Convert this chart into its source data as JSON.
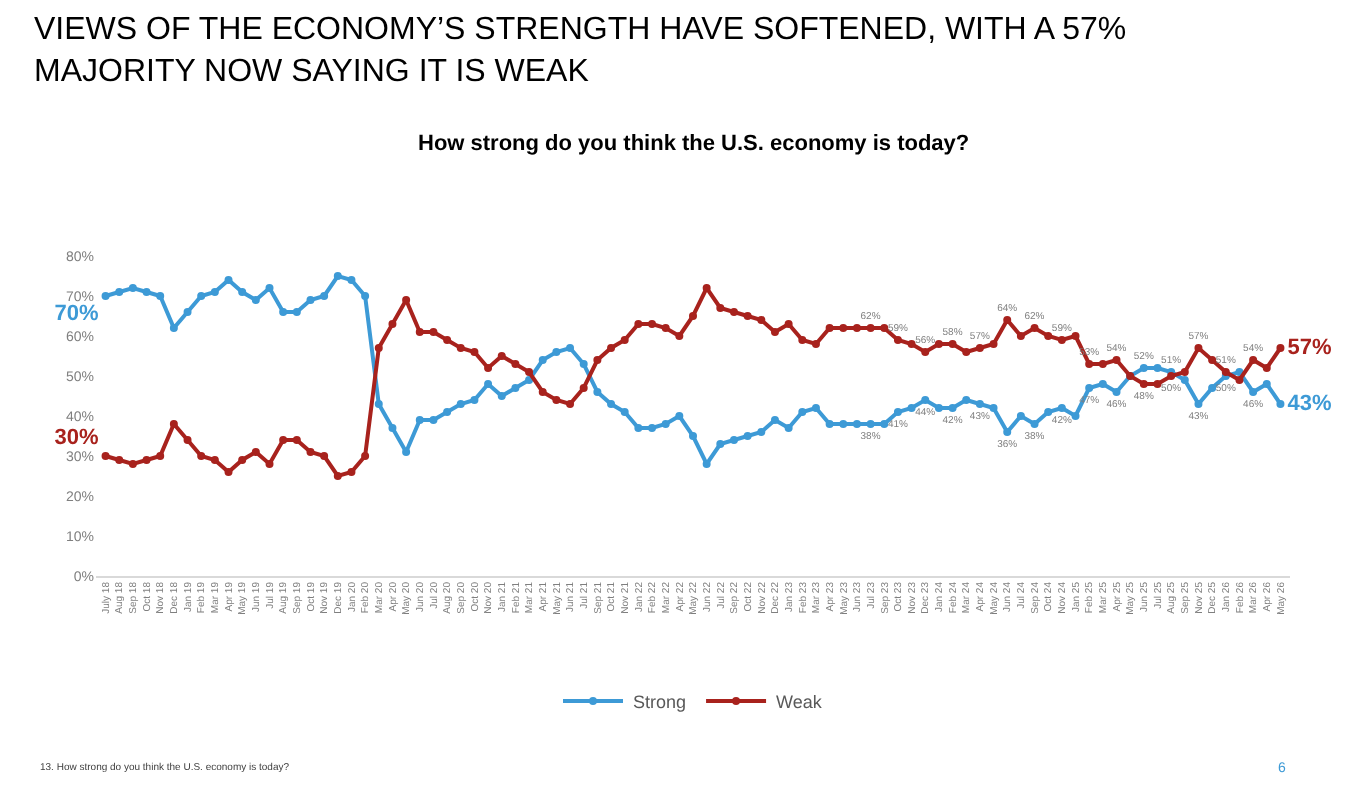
{
  "chart_data": {
    "type": "line",
    "title": "VIEWS OF THE ECONOMY’S STRENGTH HAVE SOFTENED, WITH A 57% MAJORITY NOW SAYING IT IS WEAK",
    "subtitle": "How strong do you think the U.S. economy is today?",
    "annotations": [
      "13. How strong do you think the U.S. economy is today?",
      "6"
    ],
    "categories": [
      "July 18",
      "Aug 18",
      "Sep 18",
      "Oct 18",
      "Nov 18",
      "Dec 18",
      "Jan 19",
      "Feb 19",
      "Mar 19",
      "Apr 19",
      "May 19",
      "Jun 19",
      "Jul 19",
      "Aug 19",
      "Sep 19",
      "Oct 19",
      "Nov 19",
      "Dec 19",
      "Jan 20",
      "Feb 20",
      "Mar 20",
      "Apr 20",
      "May 20",
      "Jun 20",
      "Jul 20",
      "Aug 20",
      "Sep 20",
      "Oct 20",
      "Nov 20",
      "Jan 21",
      "Feb 21",
      "Mar 21",
      "Apr 21",
      "May 21",
      "Jun 21",
      "Jul 21",
      "Sep 21",
      "Oct 21",
      "Nov 21",
      "Jan 22",
      "Feb 22",
      "Mar 22",
      "Apr 22",
      "May 22",
      "Jun 22",
      "Jul 22",
      "Sep 22",
      "Oct 22",
      "Nov 22",
      "Dec 22",
      "Jan 23",
      "Feb 23",
      "Mar 23",
      "Apr 23",
      "May 23",
      "Jun 23",
      "Jul 23",
      "Sep 23",
      "Oct 23",
      "Nov 23",
      "Dec 23",
      "Jan 24",
      "Feb 24",
      "Mar 24",
      "Apr 24",
      "May 24",
      "Jun 24",
      "Jul 24",
      "Sep 24",
      "Oct 24",
      "Nov 24",
      "Jan 25",
      "Feb 25",
      "Mar 25",
      "Apr 25",
      "May 25",
      "Jun 25",
      "Jul 25",
      "Aug 25",
      "Sep 25",
      "Nov 25",
      "Dec 25",
      "Jan 26",
      "Feb 26",
      "Mar 26",
      "Apr 26",
      "May 26"
    ],
    "series": [
      {
        "name": "Strong",
        "color": "#3d9ad6",
        "values": [
          70,
          71,
          72,
          71,
          70,
          62,
          66,
          70,
          71,
          74,
          71,
          69,
          72,
          66,
          66,
          69,
          70,
          75,
          74,
          70,
          43,
          37,
          31,
          39,
          39,
          41,
          43,
          44,
          48,
          45,
          47,
          49,
          54,
          56,
          57,
          53,
          46,
          43,
          41,
          37,
          37,
          38,
          40,
          35,
          28,
          33,
          34,
          35,
          36,
          39,
          37,
          41,
          42,
          38,
          38,
          38,
          38,
          38,
          41,
          42,
          44,
          42,
          42,
          44,
          43,
          42,
          36,
          40,
          38,
          41,
          42,
          40,
          47,
          48,
          46,
          50,
          52,
          52,
          51,
          49,
          43,
          47,
          50,
          51,
          46,
          48,
          43
        ],
        "value_labels": [
          "70%",
          null,
          null,
          null,
          null,
          null,
          null,
          null,
          null,
          null,
          null,
          null,
          null,
          null,
          null,
          null,
          null,
          null,
          null,
          null,
          null,
          null,
          null,
          null,
          null,
          null,
          null,
          null,
          null,
          null,
          null,
          null,
          null,
          null,
          null,
          null,
          null,
          null,
          null,
          null,
          null,
          null,
          null,
          null,
          null,
          null,
          null,
          null,
          null,
          null,
          null,
          null,
          null,
          null,
          null,
          null,
          "38%",
          null,
          "41%",
          null,
          "44%",
          null,
          "42%",
          null,
          "43%",
          null,
          "36%",
          null,
          "38%",
          null,
          "42%",
          null,
          "47%",
          null,
          "46%",
          null,
          "52%",
          null,
          "51%",
          null,
          "43%",
          null,
          "50%",
          null,
          "46%",
          null,
          "43%"
        ]
      },
      {
        "name": "Weak",
        "color": "#a8221d",
        "values": [
          30,
          29,
          28,
          29,
          30,
          38,
          34,
          30,
          29,
          26,
          29,
          31,
          28,
          34,
          34,
          31,
          30,
          25,
          26,
          30,
          57,
          63,
          69,
          61,
          61,
          59,
          57,
          56,
          52,
          55,
          53,
          51,
          46,
          44,
          43,
          47,
          54,
          57,
          59,
          63,
          63,
          62,
          60,
          65,
          72,
          67,
          66,
          65,
          64,
          61,
          63,
          59,
          58,
          62,
          62,
          62,
          62,
          62,
          59,
          58,
          56,
          58,
          58,
          56,
          57,
          58,
          64,
          60,
          62,
          60,
          59,
          60,
          53,
          53,
          54,
          50,
          48,
          48,
          50,
          51,
          57,
          54,
          51,
          49,
          54,
          52,
          57
        ],
        "value_labels": [
          "30%",
          null,
          null,
          null,
          null,
          null,
          null,
          null,
          null,
          null,
          null,
          null,
          null,
          null,
          null,
          null,
          null,
          null,
          null,
          null,
          null,
          null,
          null,
          null,
          null,
          null,
          null,
          null,
          null,
          null,
          null,
          null,
          null,
          null,
          null,
          null,
          null,
          null,
          null,
          null,
          null,
          null,
          null,
          null,
          null,
          null,
          null,
          null,
          null,
          null,
          null,
          null,
          null,
          null,
          null,
          null,
          "62%",
          null,
          "59%",
          null,
          "56%",
          null,
          "58%",
          null,
          "57%",
          null,
          "64%",
          null,
          "62%",
          null,
          "59%",
          null,
          "53%",
          null,
          "54%",
          null,
          "48%",
          null,
          "50%",
          null,
          "57%",
          null,
          "51%",
          null,
          "54%",
          null,
          "57%"
        ]
      }
    ],
    "ylim": [
      0,
      80
    ],
    "yticks": [
      {
        "value": 0,
        "label": "0%"
      },
      {
        "value": 10,
        "label": "10%"
      },
      {
        "value": 20,
        "label": "20%"
      },
      {
        "value": 30,
        "label": "30%"
      },
      {
        "value": 40,
        "label": "40%"
      },
      {
        "value": 50,
        "label": "50%"
      },
      {
        "value": 60,
        "label": "60%"
      },
      {
        "value": 70,
        "label": "70%"
      },
      {
        "value": 80,
        "label": "80%"
      }
    ],
    "grid": false,
    "legend": "bottom",
    "marker": "circle",
    "line_style": "solid"
  }
}
